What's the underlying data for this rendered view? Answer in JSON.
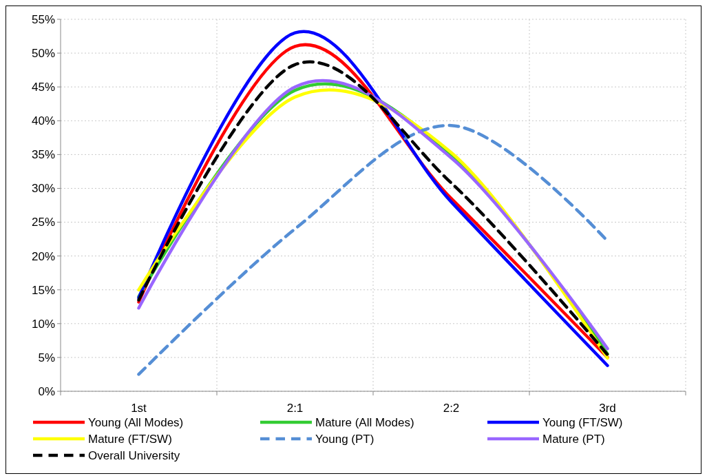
{
  "chart_data": {
    "type": "line",
    "categories": [
      "1st",
      "2:1",
      "2:2",
      "3rd"
    ],
    "series": [
      {
        "name": "Young (All Modes)",
        "color": "#ff0000",
        "values": [
          13.2,
          51,
          28.5,
          5
        ]
      },
      {
        "name": "Mature (All Modes)",
        "color": "#33cc33",
        "values": [
          14,
          44.5,
          35,
          5.5
        ]
      },
      {
        "name": "Young (FT/SW)",
        "color": "#0000ff",
        "values": [
          13.8,
          53,
          28,
          3.8
        ]
      },
      {
        "name": "Mature (FT/SW)",
        "color": "#ffff00",
        "values": [
          15,
          43.5,
          35.3,
          4.9
        ]
      },
      {
        "name": "Young (PT)",
        "color": "#558ed5",
        "line_style": "dashed",
        "values": [
          2.5,
          24,
          39.3,
          22.2
        ]
      },
      {
        "name": "Mature (PT)",
        "color": "#9966ff",
        "values": [
          12.3,
          45,
          34.5,
          6.3
        ]
      },
      {
        "name": "Overall University",
        "color": "#000000",
        "line_style": "dashed",
        "values": [
          13.5,
          48.3,
          30.8,
          5.4
        ]
      }
    ],
    "ylim": [
      0,
      55
    ],
    "yticks": [
      {
        "value": 0,
        "label": "0%"
      },
      {
        "value": 5,
        "label": "5%"
      },
      {
        "value": 10,
        "label": "10%"
      },
      {
        "value": 15,
        "label": "15%"
      },
      {
        "value": 20,
        "label": "20%"
      },
      {
        "value": 25,
        "label": "25%"
      },
      {
        "value": 30,
        "label": "30%"
      },
      {
        "value": 35,
        "label": "35%"
      },
      {
        "value": 40,
        "label": "40%"
      },
      {
        "value": 45,
        "label": "45%"
      },
      {
        "value": 50,
        "label": "50%"
      },
      {
        "value": 55,
        "label": "55%"
      }
    ],
    "grid": true,
    "legend": "bottom",
    "line_style": "solid",
    "marker": "none"
  }
}
